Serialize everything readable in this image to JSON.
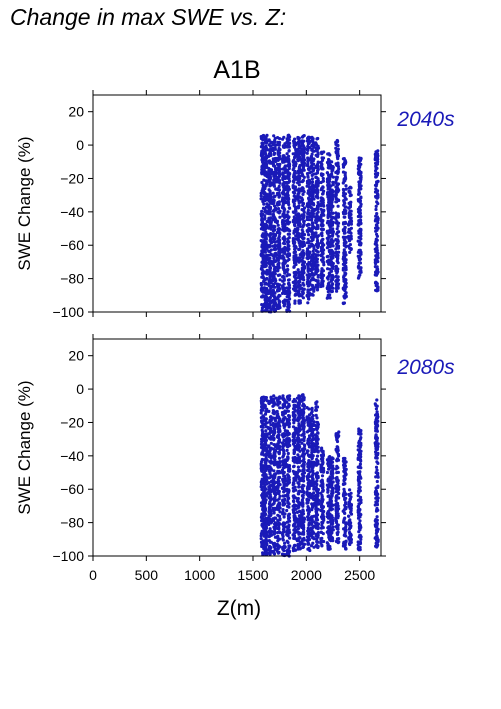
{
  "figure": {
    "title": "Change in max SWE vs. Z:",
    "scenario": "A1B"
  },
  "colors": {
    "points": "#1a1ab8",
    "axis": "#000000",
    "period_label": "#1a1ab8"
  },
  "chart_data": [
    {
      "type": "scatter",
      "period": "2040s",
      "xlabel": "",
      "ylabel": "SWE Change (%)",
      "xlim": [
        0,
        2700
      ],
      "ylim": [
        -100,
        30
      ],
      "yticks": [
        20,
        0,
        -20,
        -40,
        -60,
        -80,
        -100
      ],
      "xticks": [
        0,
        500,
        1000,
        1500,
        2000,
        2500
      ],
      "show_x_tick_labels": false,
      "grid": false,
      "series": [
        {
          "strips": [
            {
              "x": 1590,
              "ymin": -100,
              "ymax": 6
            },
            {
              "x": 1620,
              "ymin": -100,
              "ymax": 6
            },
            {
              "x": 1660,
              "ymin": -100,
              "ymax": 6
            },
            {
              "x": 1700,
              "ymin": -100,
              "ymax": 6
            },
            {
              "x": 1740,
              "ymin": -98,
              "ymax": 5
            },
            {
              "x": 1790,
              "ymin": -98,
              "ymax": 5
            },
            {
              "x": 1830,
              "ymin": -100,
              "ymax": 6
            },
            {
              "x": 1890,
              "ymin": -95,
              "ymax": 4
            },
            {
              "x": 1930,
              "ymin": -95,
              "ymax": 5
            },
            {
              "x": 1970,
              "ymin": -92,
              "ymax": 6
            },
            {
              "x": 2020,
              "ymin": -95,
              "ymax": 5
            },
            {
              "x": 2060,
              "ymin": -90,
              "ymax": 5
            },
            {
              "x": 2100,
              "ymin": -88,
              "ymax": 4
            },
            {
              "x": 2150,
              "ymin": -85,
              "ymax": -3
            },
            {
              "x": 2210,
              "ymin": -92,
              "ymax": -5
            },
            {
              "x": 2240,
              "ymin": -88,
              "ymax": -10
            },
            {
              "x": 2290,
              "ymin": -88,
              "ymax": 3
            },
            {
              "x": 2360,
              "ymin": -95,
              "ymax": -8
            },
            {
              "x": 2410,
              "ymin": -65,
              "ymax": -25
            },
            {
              "x": 2500,
              "ymin": -80,
              "ymax": -7
            },
            {
              "x": 2660,
              "ymin": -88,
              "ymax": -3
            }
          ]
        }
      ]
    },
    {
      "type": "scatter",
      "period": "2080s",
      "xlabel": "Z(m)",
      "ylabel": "SWE Change (%)",
      "xlim": [
        0,
        2700
      ],
      "ylim": [
        -100,
        30
      ],
      "yticks": [
        20,
        0,
        -20,
        -40,
        -60,
        -80,
        -100
      ],
      "xticks": [
        0,
        500,
        1000,
        1500,
        2000,
        2500
      ],
      "xtick_labels": [
        "0",
        "500",
        "1000",
        "1500",
        "2000",
        "2500"
      ],
      "show_x_tick_labels": true,
      "grid": false,
      "series": [
        {
          "strips": [
            {
              "x": 1590,
              "ymin": -100,
              "ymax": -4
            },
            {
              "x": 1620,
              "ymin": -100,
              "ymax": -4
            },
            {
              "x": 1660,
              "ymin": -100,
              "ymax": -4
            },
            {
              "x": 1700,
              "ymin": -100,
              "ymax": -4
            },
            {
              "x": 1740,
              "ymin": -100,
              "ymax": -4
            },
            {
              "x": 1790,
              "ymin": -100,
              "ymax": -4
            },
            {
              "x": 1830,
              "ymin": -100,
              "ymax": -4
            },
            {
              "x": 1890,
              "ymin": -98,
              "ymax": -5
            },
            {
              "x": 1930,
              "ymin": -97,
              "ymax": -4
            },
            {
              "x": 1970,
              "ymin": -95,
              "ymax": -2
            },
            {
              "x": 2020,
              "ymin": -97,
              "ymax": -10
            },
            {
              "x": 2060,
              "ymin": -96,
              "ymax": -10
            },
            {
              "x": 2100,
              "ymin": -95,
              "ymax": -7
            },
            {
              "x": 2150,
              "ymin": -94,
              "ymax": -35
            },
            {
              "x": 2210,
              "ymin": -96,
              "ymax": -40
            },
            {
              "x": 2240,
              "ymin": -92,
              "ymax": -40
            },
            {
              "x": 2290,
              "ymin": -92,
              "ymax": -25
            },
            {
              "x": 2360,
              "ymin": -96,
              "ymax": -40
            },
            {
              "x": 2410,
              "ymin": -95,
              "ymax": -60
            },
            {
              "x": 2500,
              "ymin": -97,
              "ymax": -22
            },
            {
              "x": 2660,
              "ymin": -96,
              "ymax": -6
            }
          ]
        }
      ]
    }
  ]
}
